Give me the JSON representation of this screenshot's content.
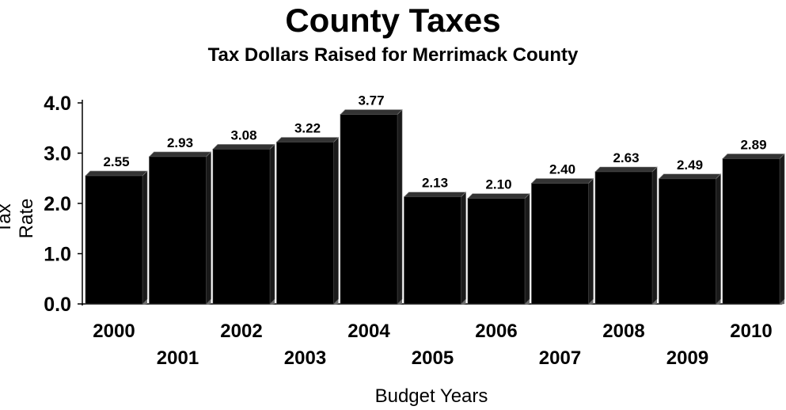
{
  "chart_data": {
    "type": "bar",
    "title": "County Taxes",
    "subtitle": "Tax Dollars Raised for Merrimack County",
    "xlabel": "Budget Years",
    "ylabel": "Tax Rate",
    "categories": [
      "2000",
      "2001",
      "2002",
      "2003",
      "2004",
      "2005",
      "2006",
      "2007",
      "2008",
      "2009",
      "2010"
    ],
    "values": [
      2.55,
      2.93,
      3.08,
      3.22,
      3.77,
      2.13,
      2.1,
      2.4,
      2.63,
      2.49,
      2.89
    ],
    "value_labels": [
      "2.55",
      "2.93",
      "3.08",
      "3.22",
      "3.77",
      "2.13",
      "2.10",
      "2.40",
      "2.63",
      "2.49",
      "2.89"
    ],
    "yticks": [
      "0.0",
      "1.0",
      "2.0",
      "3.0",
      "4.0"
    ],
    "ylim": [
      0,
      4
    ],
    "grid": false,
    "legend": "none",
    "colors": {
      "bar": "#000000",
      "bar_top": "#333333",
      "bar_side": "#1a1a1a",
      "floor": "#6b6b6b"
    }
  }
}
